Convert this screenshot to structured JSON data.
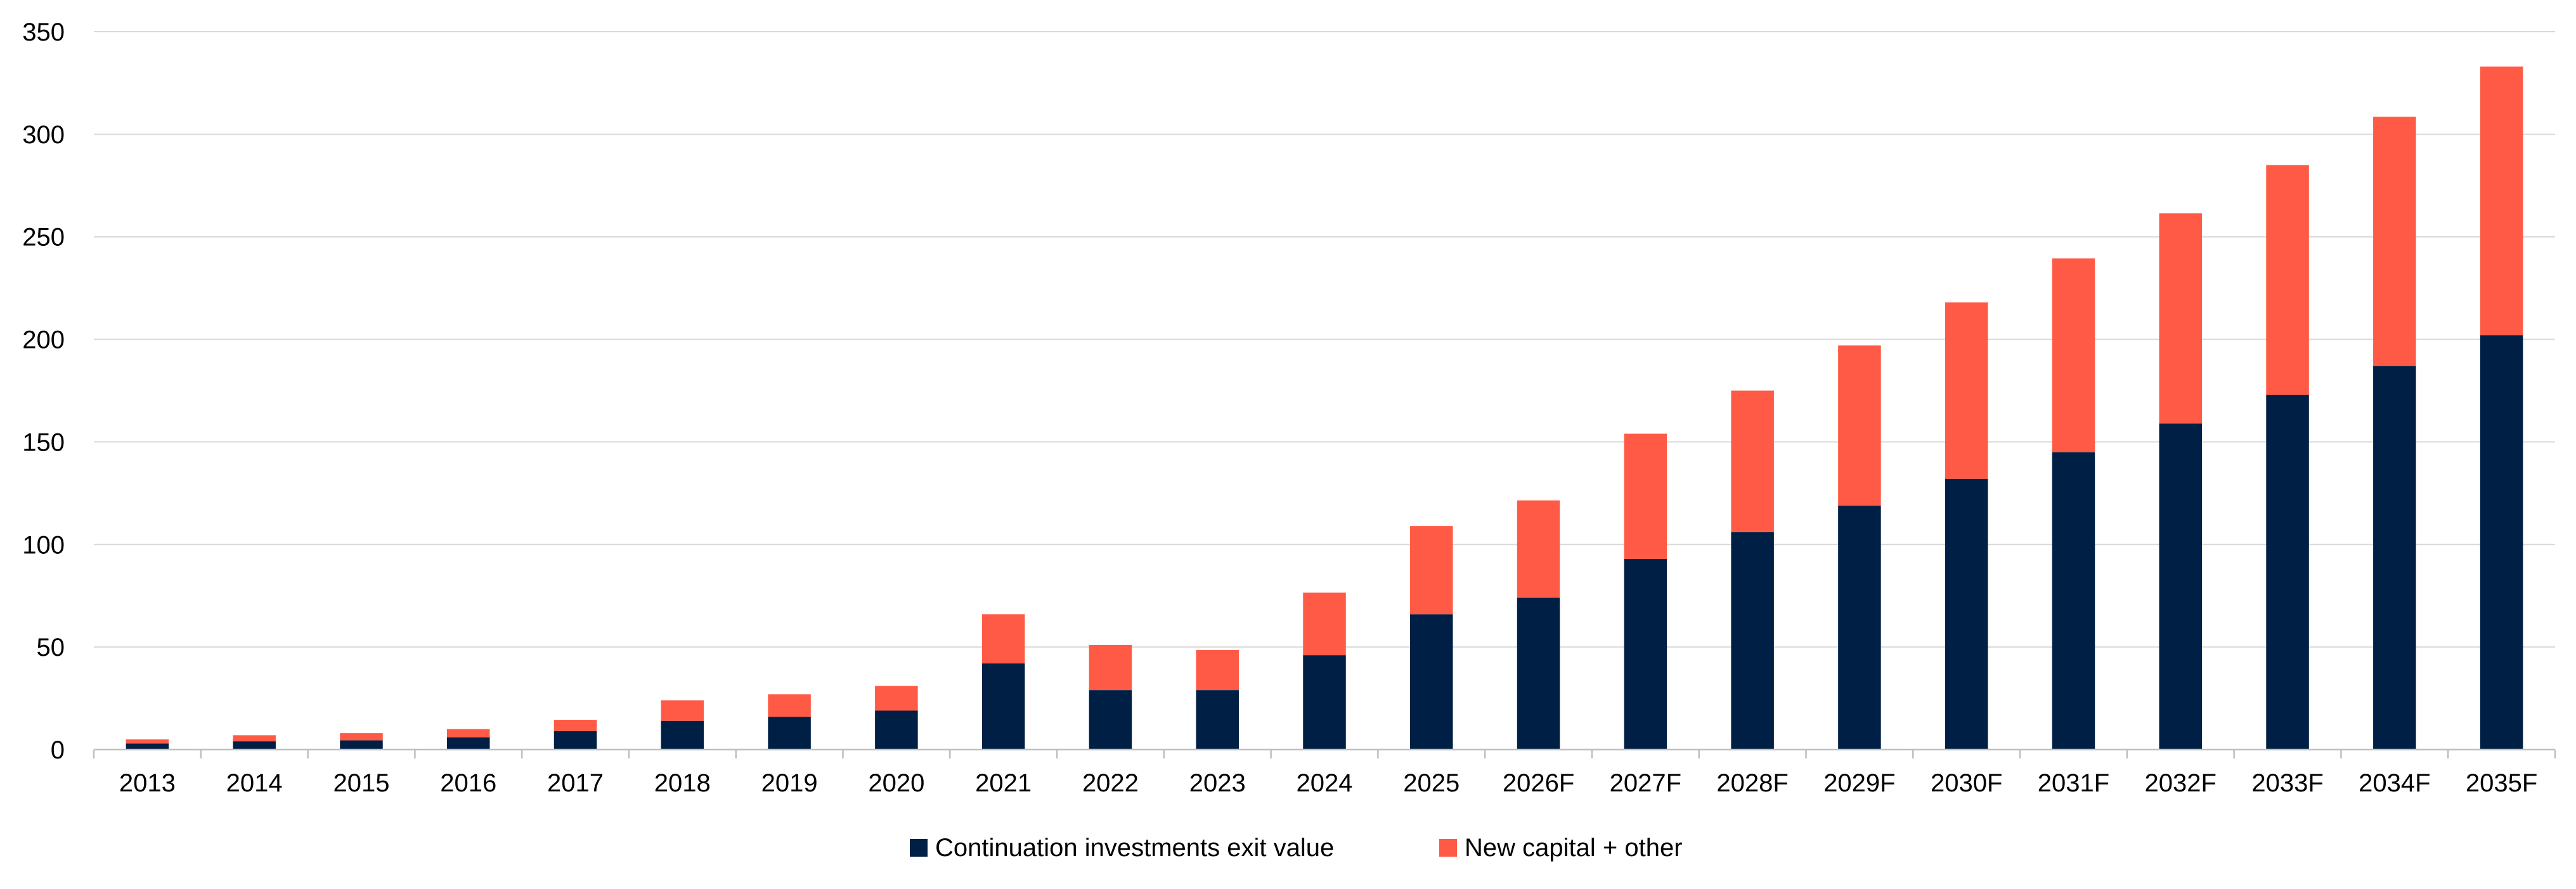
{
  "chart_data": {
    "type": "bar",
    "stacked": true,
    "title": "",
    "xlabel": "",
    "ylabel": "",
    "ylim": [
      0,
      350
    ],
    "yticks": [
      0,
      50,
      100,
      150,
      200,
      250,
      300,
      350
    ],
    "grid": true,
    "legend_position": "bottom-center",
    "categories": [
      "2013",
      "2014",
      "2015",
      "2016",
      "2017",
      "2018",
      "2019",
      "2020",
      "2021",
      "2022",
      "2023",
      "2024",
      "2025",
      "2026F",
      "2027F",
      "2028F",
      "2029F",
      "2030F",
      "2031F",
      "2032F",
      "2033F",
      "2034F",
      "2035F"
    ],
    "series": [
      {
        "name": "Continuation investments exit value",
        "color": "#001f45",
        "values": [
          3,
          4,
          4.5,
          6,
          9,
          14,
          16,
          19,
          42,
          29,
          29,
          46,
          66,
          74,
          93,
          106,
          119,
          132,
          145,
          159,
          173,
          187,
          202
        ]
      },
      {
        "name": "New capital + other",
        "color": "#ff5a45",
        "values": [
          2,
          3,
          3.5,
          4,
          5.5,
          10,
          11,
          12,
          24,
          22,
          19.5,
          30.5,
          43,
          47.5,
          61,
          69,
          78,
          86,
          94.5,
          102.5,
          112,
          121.5,
          131
        ]
      }
    ]
  }
}
